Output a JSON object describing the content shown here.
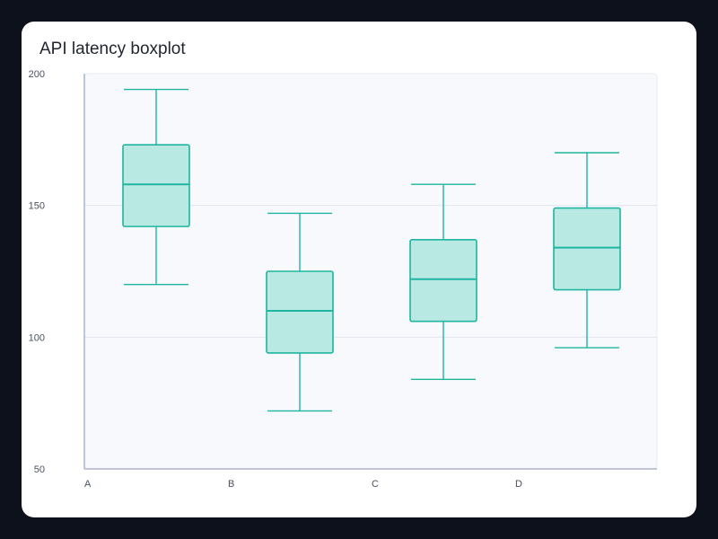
{
  "chart_data": {
    "type": "boxplot",
    "title": "API latency boxplot",
    "xlabel": "",
    "ylabel": "",
    "categories": [
      "A",
      "B",
      "C",
      "D"
    ],
    "boxes": [
      {
        "category": "A",
        "min": 120,
        "q1": 142,
        "median": 158,
        "q3": 173,
        "max": 194
      },
      {
        "category": "B",
        "min": 72,
        "q1": 94,
        "median": 110,
        "q3": 125,
        "max": 147
      },
      {
        "category": "C",
        "min": 84,
        "q1": 106,
        "median": 122,
        "q3": 137,
        "max": 158
      },
      {
        "category": "D",
        "min": 96,
        "q1": 118,
        "median": 134,
        "q3": 149,
        "max": 170
      }
    ],
    "ylim": [
      50,
      200
    ],
    "yticks": [
      50,
      100,
      150,
      200
    ],
    "grid": true,
    "colors": {
      "box_fill": "#b9e9e3",
      "box_stroke": "#1fb5a0",
      "plot_bg": "#f7f9fd",
      "grid": "#e1e6ef",
      "axis": "#aab5cc"
    }
  }
}
